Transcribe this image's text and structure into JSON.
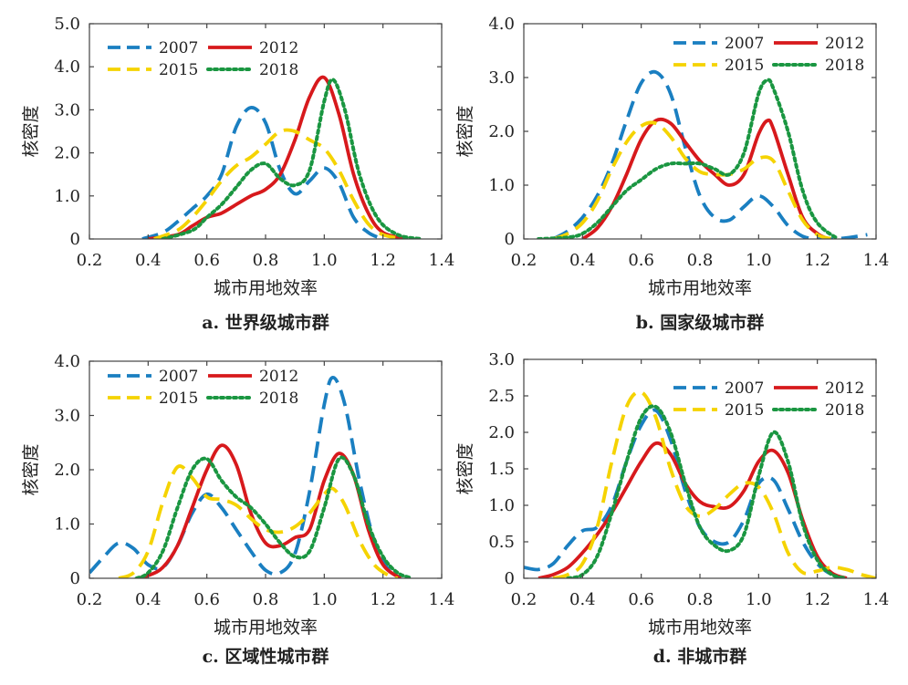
{
  "figure": {
    "ylabel": "核密度",
    "xlabel": "城市用地效率",
    "colors": {
      "2007": "#1a7fc1",
      "2012": "#d7191c",
      "2015": "#f5d300",
      "2018": "#1a9641"
    },
    "dash_styles": {
      "2007": "dashed",
      "2012": "solid",
      "2015": "dashed",
      "2018": "dotted"
    }
  },
  "chart_data": [
    {
      "type": "line",
      "caption": "a. 世界级城市群",
      "xlabel": "城市用地效率",
      "ylabel": "核密度",
      "xlim": [
        0.2,
        1.4
      ],
      "ylim": [
        0,
        5
      ],
      "xticks": [
        "0.2",
        "0.4",
        "0.6",
        "0.8",
        "1.0",
        "1.2",
        "1.4"
      ],
      "yticks": [
        "0",
        "1.0",
        "2.0",
        "3.0",
        "4.0",
        "5.0"
      ],
      "legend": [
        "2007",
        "2012",
        "2015",
        "2018"
      ],
      "legend_position": "top-left",
      "series": [
        {
          "name": "2007",
          "x": [
            0.38,
            0.45,
            0.5,
            0.55,
            0.6,
            0.65,
            0.7,
            0.75,
            0.8,
            0.85,
            0.9,
            0.95,
            1.0,
            1.05,
            1.1,
            1.15,
            1.2
          ],
          "y": [
            0,
            0.15,
            0.4,
            0.7,
            1.0,
            1.5,
            2.6,
            3.05,
            2.7,
            1.6,
            1.05,
            1.35,
            1.65,
            1.3,
            0.5,
            0.15,
            0
          ]
        },
        {
          "name": "2012",
          "x": [
            0.4,
            0.5,
            0.55,
            0.6,
            0.65,
            0.7,
            0.75,
            0.8,
            0.85,
            0.9,
            0.95,
            1.0,
            1.05,
            1.1,
            1.15,
            1.2,
            1.28
          ],
          "y": [
            0,
            0.1,
            0.3,
            0.5,
            0.6,
            0.8,
            1.0,
            1.15,
            1.5,
            2.3,
            3.3,
            3.75,
            2.9,
            1.5,
            0.6,
            0.15,
            0
          ]
        },
        {
          "name": "2015",
          "x": [
            0.42,
            0.5,
            0.55,
            0.6,
            0.65,
            0.7,
            0.75,
            0.8,
            0.85,
            0.9,
            0.95,
            1.0,
            1.05,
            1.1,
            1.15,
            1.2,
            1.27
          ],
          "y": [
            0,
            0.2,
            0.5,
            0.9,
            1.35,
            1.7,
            1.9,
            2.2,
            2.5,
            2.5,
            2.3,
            2.1,
            1.6,
            0.9,
            0.35,
            0.1,
            0
          ]
        },
        {
          "name": "2018",
          "x": [
            0.45,
            0.55,
            0.6,
            0.65,
            0.7,
            0.75,
            0.8,
            0.85,
            0.9,
            0.95,
            1.0,
            1.03,
            1.07,
            1.12,
            1.18,
            1.25,
            1.33
          ],
          "y": [
            0,
            0.2,
            0.5,
            0.8,
            1.2,
            1.6,
            1.75,
            1.4,
            1.25,
            1.6,
            3.2,
            3.7,
            3.0,
            1.5,
            0.5,
            0.1,
            0
          ]
        }
      ]
    },
    {
      "type": "line",
      "caption": "b. 国家级城市群",
      "xlabel": "城市用地效率",
      "ylabel": "核密度",
      "xlim": [
        0.2,
        1.4
      ],
      "ylim": [
        0,
        4
      ],
      "xticks": [
        "0.2",
        "0.4",
        "0.6",
        "0.8",
        "1.0",
        "1.2",
        "1.4"
      ],
      "yticks": [
        "0",
        "1.0",
        "2.0",
        "3.0",
        "4.0"
      ],
      "legend": [
        "2007",
        "2012",
        "2015",
        "2018"
      ],
      "legend_position": "top-right",
      "series": [
        {
          "name": "2007",
          "x": [
            0.3,
            0.35,
            0.4,
            0.45,
            0.5,
            0.55,
            0.6,
            0.65,
            0.7,
            0.75,
            0.8,
            0.85,
            0.9,
            0.95,
            1.0,
            1.05,
            1.1,
            1.15,
            1.2,
            1.25,
            1.3,
            1.37
          ],
          "y": [
            0,
            0.15,
            0.4,
            0.8,
            1.4,
            2.2,
            2.9,
            3.1,
            2.7,
            1.7,
            0.8,
            0.4,
            0.35,
            0.6,
            0.8,
            0.6,
            0.25,
            0.05,
            0,
            0,
            0.02,
            0.08
          ]
        },
        {
          "name": "2012",
          "x": [
            0.4,
            0.45,
            0.5,
            0.55,
            0.6,
            0.65,
            0.7,
            0.75,
            0.8,
            0.85,
            0.9,
            0.95,
            1.0,
            1.03,
            1.05,
            1.1,
            1.15,
            1.2,
            1.24
          ],
          "y": [
            0,
            0.2,
            0.6,
            1.2,
            1.85,
            2.2,
            2.15,
            1.8,
            1.45,
            1.2,
            1.0,
            1.2,
            1.95,
            2.2,
            2.05,
            1.2,
            0.4,
            0.1,
            0
          ]
        },
        {
          "name": "2015",
          "x": [
            0.3,
            0.35,
            0.4,
            0.45,
            0.5,
            0.55,
            0.6,
            0.65,
            0.7,
            0.75,
            0.8,
            0.85,
            0.9,
            0.95,
            1.0,
            1.05,
            1.1,
            1.15,
            1.2,
            1.25
          ],
          "y": [
            0,
            0.1,
            0.3,
            0.7,
            1.3,
            1.8,
            2.1,
            2.15,
            1.9,
            1.5,
            1.25,
            1.2,
            1.2,
            1.3,
            1.5,
            1.45,
            0.9,
            0.35,
            0.08,
            0
          ]
        },
        {
          "name": "2018",
          "x": [
            0.25,
            0.35,
            0.4,
            0.45,
            0.5,
            0.55,
            0.6,
            0.65,
            0.7,
            0.75,
            0.8,
            0.85,
            0.9,
            0.95,
            1.0,
            1.03,
            1.05,
            1.1,
            1.15,
            1.2,
            1.27
          ],
          "y": [
            0,
            0.03,
            0.1,
            0.3,
            0.6,
            0.9,
            1.1,
            1.3,
            1.4,
            1.4,
            1.4,
            1.3,
            1.2,
            1.6,
            2.7,
            2.95,
            2.8,
            2.0,
            0.9,
            0.3,
            0
          ]
        }
      ]
    },
    {
      "type": "line",
      "caption": "c. 区域性城市群",
      "xlabel": "城市用地效率",
      "ylabel": "核密度",
      "xlim": [
        0.2,
        1.4
      ],
      "ylim": [
        0,
        4
      ],
      "xticks": [
        "0.2",
        "0.4",
        "0.6",
        "0.8",
        "1.0",
        "1.2",
        "1.4"
      ],
      "yticks": [
        "0",
        "1.0",
        "2.0",
        "3.0",
        "4.0"
      ],
      "legend": [
        "2007",
        "2012",
        "2015",
        "2018"
      ],
      "legend_position": "top-right",
      "series": [
        {
          "name": "2007",
          "x": [
            0.2,
            0.25,
            0.3,
            0.35,
            0.4,
            0.45,
            0.5,
            0.55,
            0.6,
            0.65,
            0.7,
            0.75,
            0.8,
            0.85,
            0.9,
            0.95,
            1.0,
            1.03,
            1.07,
            1.12,
            1.17,
            1.22,
            1.26
          ],
          "y": [
            0.1,
            0.4,
            0.65,
            0.55,
            0.25,
            0.2,
            0.6,
            1.2,
            1.55,
            1.3,
            0.9,
            0.5,
            0.15,
            0.1,
            0.45,
            1.6,
            3.2,
            3.7,
            3.2,
            1.8,
            0.7,
            0.15,
            0
          ]
        },
        {
          "name": "2012",
          "x": [
            0.36,
            0.4,
            0.45,
            0.5,
            0.55,
            0.6,
            0.65,
            0.7,
            0.75,
            0.8,
            0.85,
            0.9,
            0.95,
            1.0,
            1.05,
            1.1,
            1.15,
            1.2,
            1.26
          ],
          "y": [
            0,
            0.05,
            0.2,
            0.6,
            1.3,
            2.0,
            2.45,
            2.1,
            1.2,
            0.65,
            0.6,
            0.75,
            0.9,
            1.8,
            2.3,
            1.9,
            0.9,
            0.25,
            0
          ]
        },
        {
          "name": "2015",
          "x": [
            0.3,
            0.35,
            0.4,
            0.45,
            0.5,
            0.55,
            0.6,
            0.65,
            0.7,
            0.75,
            0.8,
            0.85,
            0.9,
            0.95,
            1.0,
            1.03,
            1.07,
            1.12,
            1.17,
            1.22,
            1.25
          ],
          "y": [
            0,
            0.1,
            0.5,
            1.4,
            2.05,
            1.85,
            1.5,
            1.45,
            1.35,
            1.1,
            0.9,
            0.85,
            0.95,
            1.2,
            1.55,
            1.65,
            1.35,
            0.7,
            0.25,
            0.05,
            0
          ]
        },
        {
          "name": "2018",
          "x": [
            0.36,
            0.4,
            0.45,
            0.5,
            0.55,
            0.6,
            0.65,
            0.7,
            0.75,
            0.8,
            0.85,
            0.9,
            0.95,
            1.0,
            1.05,
            1.1,
            1.15,
            1.2,
            1.25,
            1.3
          ],
          "y": [
            0,
            0.1,
            0.5,
            1.3,
            2.0,
            2.2,
            1.8,
            1.5,
            1.3,
            1.0,
            0.65,
            0.4,
            0.5,
            1.3,
            2.2,
            1.9,
            1.0,
            0.4,
            0.1,
            0
          ]
        }
      ]
    },
    {
      "type": "line",
      "caption": "d. 非城市群",
      "xlabel": "城市用地效率",
      "ylabel": "核密度",
      "xlim": [
        0.2,
        1.4
      ],
      "ylim": [
        0,
        3
      ],
      "xticks": [
        "0.2",
        "0.4",
        "0.6",
        "0.8",
        "1.0",
        "1.2",
        "1.4"
      ],
      "yticks": [
        "0",
        "0.5",
        "1.0",
        "1.5",
        "2.0",
        "2.5",
        "3.0"
      ],
      "legend": [
        "2007",
        "2012",
        "2015",
        "2018"
      ],
      "legend_position": "top-right",
      "series": [
        {
          "name": "2007",
          "x": [
            0.2,
            0.25,
            0.3,
            0.35,
            0.4,
            0.45,
            0.5,
            0.55,
            0.6,
            0.65,
            0.7,
            0.75,
            0.8,
            0.85,
            0.9,
            0.95,
            1.0,
            1.05,
            1.1,
            1.15,
            1.2,
            1.25,
            1.3
          ],
          "y": [
            0.15,
            0.12,
            0.2,
            0.45,
            0.65,
            0.7,
            1.0,
            1.6,
            2.1,
            2.3,
            1.9,
            1.2,
            0.7,
            0.5,
            0.5,
            0.8,
            1.3,
            1.35,
            0.95,
            0.5,
            0.2,
            0.05,
            0
          ]
        },
        {
          "name": "2012",
          "x": [
            0.25,
            0.3,
            0.35,
            0.4,
            0.45,
            0.5,
            0.55,
            0.6,
            0.65,
            0.7,
            0.75,
            0.8,
            0.85,
            0.9,
            0.95,
            1.0,
            1.05,
            1.1,
            1.15,
            1.2,
            1.25,
            1.3
          ],
          "y": [
            0,
            0.05,
            0.15,
            0.35,
            0.6,
            0.9,
            1.25,
            1.6,
            1.85,
            1.7,
            1.3,
            1.05,
            0.98,
            0.98,
            1.2,
            1.6,
            1.75,
            1.45,
            0.8,
            0.3,
            0.07,
            0
          ]
        },
        {
          "name": "2015",
          "x": [
            0.3,
            0.35,
            0.4,
            0.45,
            0.5,
            0.55,
            0.6,
            0.65,
            0.7,
            0.75,
            0.8,
            0.85,
            0.9,
            0.95,
            1.0,
            1.05,
            1.1,
            1.15,
            1.2,
            1.25,
            1.3,
            1.35,
            1.4
          ],
          "y": [
            0,
            0.05,
            0.2,
            0.7,
            1.6,
            2.35,
            2.55,
            2.2,
            1.5,
            1.0,
            0.85,
            0.95,
            1.15,
            1.3,
            1.25,
            0.9,
            0.35,
            0.08,
            0.1,
            0.15,
            0.12,
            0.05,
            0
          ]
        },
        {
          "name": "2018",
          "x": [
            0.35,
            0.4,
            0.45,
            0.5,
            0.55,
            0.6,
            0.65,
            0.7,
            0.75,
            0.8,
            0.85,
            0.9,
            0.95,
            1.0,
            1.05,
            1.1,
            1.15,
            1.2,
            1.25,
            1.3
          ],
          "y": [
            0,
            0.05,
            0.3,
            0.9,
            1.6,
            2.2,
            2.35,
            2.0,
            1.3,
            0.7,
            0.45,
            0.38,
            0.6,
            1.4,
            2.0,
            1.6,
            0.75,
            0.25,
            0.05,
            0
          ]
        }
      ]
    }
  ]
}
